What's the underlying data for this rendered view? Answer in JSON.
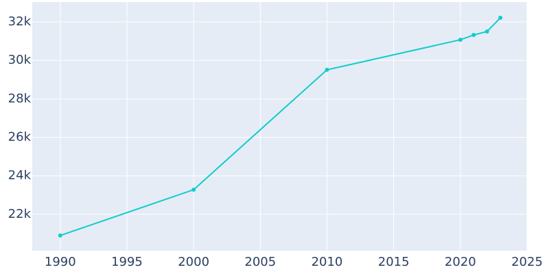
{
  "chart_data": {
    "type": "line",
    "x": [
      1990,
      2000,
      2010,
      2020,
      2021,
      2022,
      2023
    ],
    "series": [
      {
        "color": "#12cccc",
        "values": [
          20900,
          23280,
          29510,
          31070,
          31320,
          31500,
          32210
        ]
      }
    ],
    "xlim": [
      1987.9,
      2025
    ],
    "xticks": [
      1990,
      1995,
      2000,
      2005,
      2010,
      2015,
      2020,
      2025
    ],
    "ylim": [
      20110,
      33030
    ],
    "yticks": [
      {
        "value": 22000,
        "label": "22k"
      },
      {
        "value": 24000,
        "label": "24k"
      },
      {
        "value": 26000,
        "label": "26k"
      },
      {
        "value": 28000,
        "label": "28k"
      },
      {
        "value": 30000,
        "label": "30k"
      },
      {
        "value": 32000,
        "label": "32k"
      }
    ],
    "grid": true
  }
}
